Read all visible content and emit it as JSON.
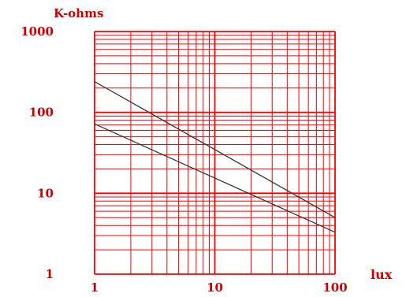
{
  "chart_data": {
    "type": "line",
    "title": "",
    "xlabel": "lux",
    "ylabel": "K-ohms",
    "xscale": "log",
    "yscale": "log",
    "xlim": [
      1,
      100
    ],
    "ylim": [
      1,
      1000
    ],
    "grid": true,
    "x_ticks": [
      {
        "value": 1,
        "label": "1"
      },
      {
        "value": 10,
        "label": "10"
      },
      {
        "value": 100,
        "label": "100"
      }
    ],
    "y_ticks": [
      {
        "value": 1,
        "label": "1"
      },
      {
        "value": 10,
        "label": "10"
      },
      {
        "value": 100,
        "label": "100"
      },
      {
        "value": 1000,
        "label": "1000"
      }
    ],
    "series": [
      {
        "x": [
          1,
          100
        ],
        "y": [
          240,
          5
        ]
      },
      {
        "x": [
          1,
          100
        ],
        "y": [
          72,
          3.3
        ]
      }
    ]
  },
  "colors": {
    "grid": "#ff0000",
    "labels": "#cc0000",
    "line": "#333333",
    "background": "#ffffff"
  }
}
